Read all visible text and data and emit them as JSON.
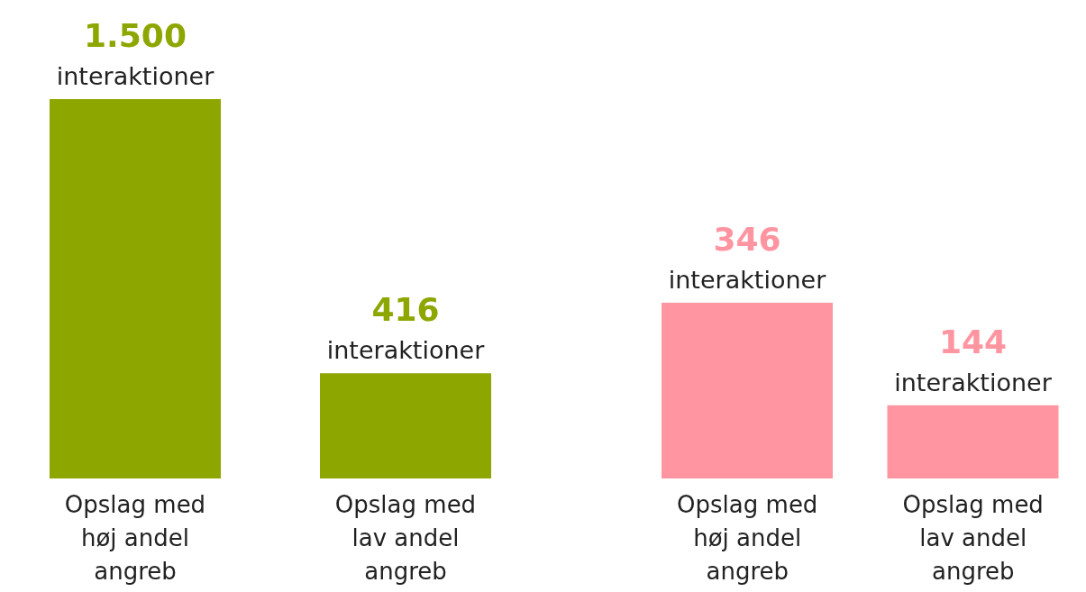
{
  "chart_data": [
    {
      "type": "bar",
      "categories": [
        "Opslag med høj andel angreb",
        "Opslag med lav andel angreb"
      ],
      "values": [
        1500,
        416
      ],
      "colors": [
        "#8ea600",
        "#8ea600"
      ],
      "value_labels": [
        "1.500 interaktioner",
        "416 interaktioner"
      ]
    },
    {
      "type": "bar",
      "categories": [
        "Opslag med høj andel angreb",
        "Opslag med lav andel angreb"
      ],
      "values": [
        346,
        144
      ],
      "colors": [
        "#ff95a0",
        "#ff95a0"
      ],
      "value_labels": [
        "346 interaktioner",
        "144 interaktioner"
      ]
    }
  ]
}
